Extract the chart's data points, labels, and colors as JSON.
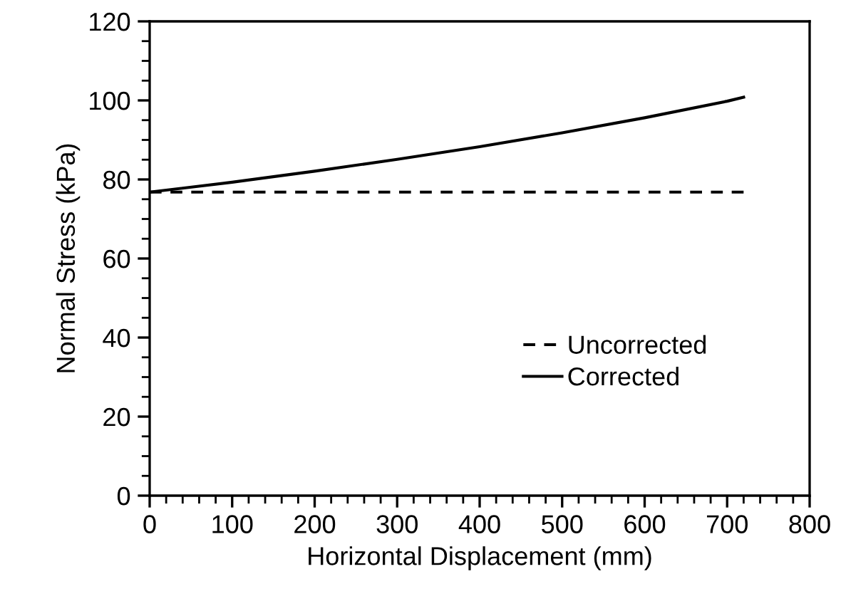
{
  "chart_data": {
    "type": "line",
    "xlabel": "Horizontal Displacement (mm)",
    "ylabel": "Normal Stress (kPa)",
    "xlim": [
      0,
      800
    ],
    "xticks": [
      0,
      100,
      200,
      300,
      400,
      500,
      600,
      700,
      800
    ],
    "ylim": [
      0,
      120
    ],
    "yticks": [
      0,
      20,
      40,
      60,
      80,
      100,
      120
    ],
    "grid": false,
    "legend": "right",
    "marker": "none",
    "series": [
      {
        "name": "Uncorrected",
        "color": "#000000",
        "line_style": "dashed",
        "x": [
          0,
          720
        ],
        "values": [
          76.8,
          76.8
        ]
      },
      {
        "name": "Corrected",
        "color": "#000000",
        "line_style": "solid",
        "x": [
          0,
          100,
          200,
          300,
          400,
          500,
          600,
          700,
          720
        ],
        "values": [
          76.8,
          79.3,
          82.1,
          85.1,
          88.3,
          91.8,
          95.6,
          99.8,
          100.8
        ]
      }
    ]
  }
}
